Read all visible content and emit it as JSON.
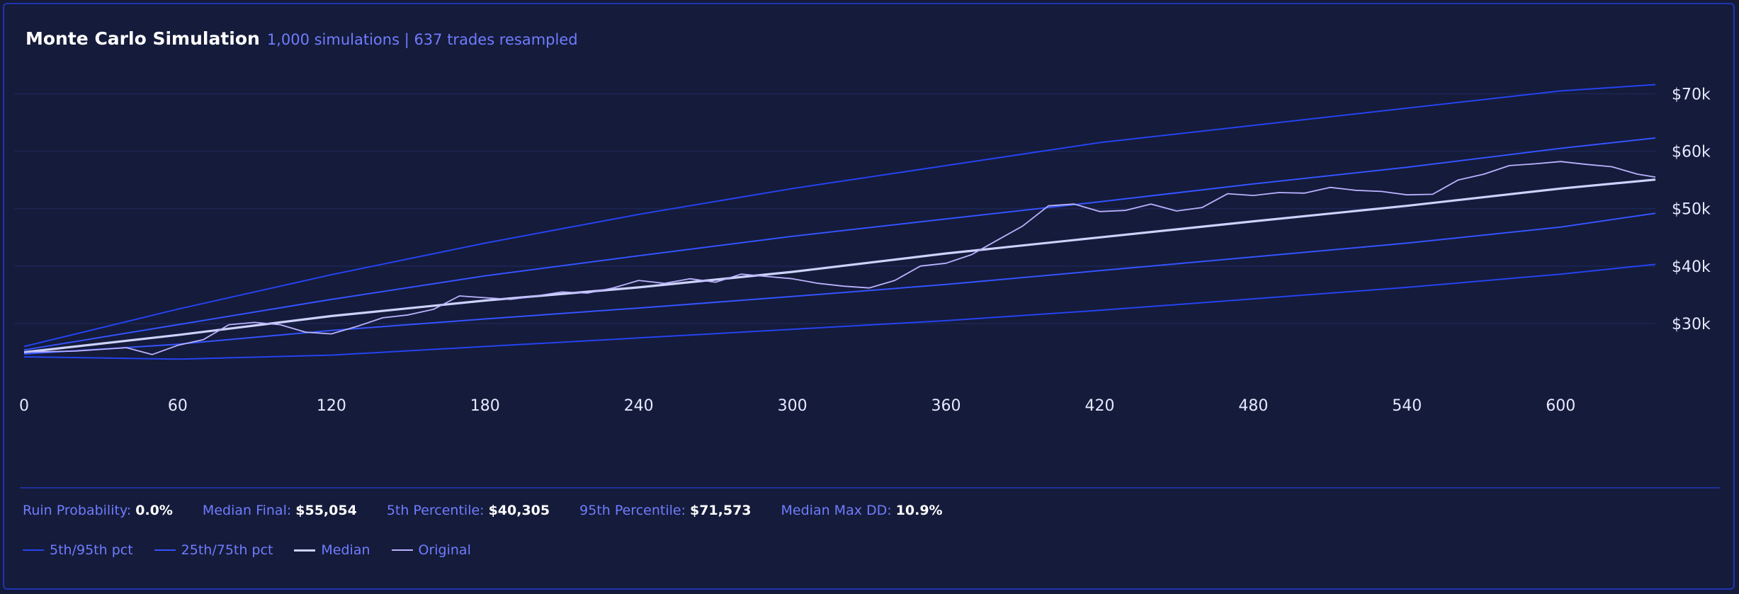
{
  "header": {
    "title": "Monte Carlo Simulation",
    "subtitle": "1,000 simulations | 637 trades resampled"
  },
  "colors": {
    "background": "#151b3a",
    "band_outer": "#2443f0",
    "band_inner": "#3353ff",
    "median": "#cdd2ff",
    "original": "#b9b2ff",
    "accent_text": "#6f7dff",
    "grid": "#1b2656"
  },
  "chart_data": {
    "type": "line",
    "title": "Monte Carlo Simulation",
    "xlabel": "",
    "ylabel": "",
    "xlim": [
      0,
      637
    ],
    "ylim": [
      21000,
      74000
    ],
    "x_ticks": [
      0,
      60,
      120,
      180,
      240,
      300,
      360,
      420,
      480,
      540,
      600
    ],
    "x_tick_labels": [
      "0",
      "60",
      "120",
      "180",
      "240",
      "300",
      "360",
      "420",
      "480",
      "540",
      "600"
    ],
    "y_ticks": [
      30000,
      40000,
      50000,
      60000,
      70000
    ],
    "y_tick_labels": [
      "$30k",
      "$40k",
      "$50k",
      "$60k",
      "$70k"
    ],
    "grid": true,
    "legend_position": "bottom-left",
    "series": [
      {
        "name": "95th pct",
        "group": "5th/95th pct",
        "x": [
          0,
          60,
          120,
          180,
          240,
          300,
          360,
          420,
          480,
          540,
          600,
          637
        ],
        "values": [
          26000,
          32500,
          38500,
          44000,
          49000,
          53500,
          57500,
          61500,
          64500,
          67500,
          70500,
          71600
        ]
      },
      {
        "name": "75th pct",
        "group": "25th/75th pct",
        "x": [
          0,
          60,
          120,
          180,
          240,
          300,
          360,
          420,
          480,
          540,
          600,
          637
        ],
        "values": [
          25400,
          29800,
          34200,
          38300,
          41800,
          45200,
          48200,
          51200,
          54300,
          57200,
          60500,
          62300
        ]
      },
      {
        "name": "Median",
        "group": "Median",
        "x": [
          0,
          60,
          120,
          180,
          240,
          300,
          360,
          420,
          480,
          540,
          600,
          637
        ],
        "values": [
          25000,
          28000,
          31300,
          34000,
          36300,
          39000,
          42200,
          45000,
          47800,
          50500,
          53500,
          55054
        ]
      },
      {
        "name": "25th pct",
        "group": "25th/75th pct",
        "x": [
          0,
          60,
          120,
          180,
          240,
          300,
          360,
          420,
          480,
          540,
          600,
          637
        ],
        "values": [
          24700,
          26400,
          28800,
          30800,
          32700,
          34700,
          36800,
          39200,
          41600,
          44000,
          46800,
          49200
        ]
      },
      {
        "name": "5th pct",
        "group": "5th/95th pct",
        "x": [
          0,
          60,
          120,
          180,
          240,
          300,
          360,
          420,
          480,
          540,
          600,
          637
        ],
        "values": [
          24200,
          23800,
          24500,
          26000,
          27500,
          29000,
          30500,
          32300,
          34300,
          36300,
          38600,
          40305
        ]
      },
      {
        "name": "Original",
        "group": "Original",
        "x": [
          0,
          20,
          40,
          50,
          60,
          70,
          80,
          90,
          100,
          110,
          120,
          130,
          140,
          150,
          160,
          170,
          180,
          190,
          200,
          210,
          220,
          230,
          240,
          250,
          260,
          270,
          280,
          290,
          300,
          310,
          320,
          330,
          340,
          350,
          360,
          370,
          380,
          390,
          400,
          410,
          420,
          430,
          440,
          450,
          460,
          470,
          480,
          490,
          500,
          510,
          520,
          530,
          540,
          550,
          560,
          570,
          580,
          590,
          600,
          610,
          620,
          630,
          637
        ],
        "values": [
          25000,
          25200,
          25800,
          24600,
          26200,
          27200,
          29800,
          30200,
          29800,
          28500,
          28200,
          29500,
          31000,
          31500,
          32500,
          34800,
          34500,
          34200,
          34800,
          35500,
          35300,
          36200,
          37500,
          37000,
          37800,
          37200,
          38600,
          38200,
          37800,
          37000,
          36500,
          36200,
          37500,
          40000,
          40500,
          42000,
          44500,
          47000,
          50500,
          50800,
          49500,
          49700,
          50800,
          49600,
          50200,
          52600,
          52300,
          52800,
          52700,
          53700,
          53200,
          53000,
          52400,
          52500,
          55000,
          56000,
          57500,
          57800,
          58200,
          57700,
          57300,
          56000,
          55500
        ]
      }
    ]
  },
  "stats": [
    {
      "label": "Ruin Probability:",
      "value": "0.0%"
    },
    {
      "label": "Median Final:",
      "value": "$55,054"
    },
    {
      "label": "5th Percentile:",
      "value": "$40,305"
    },
    {
      "label": "95th Percentile:",
      "value": "$71,573"
    },
    {
      "label": "Median Max DD:",
      "value": "10.9%"
    }
  ],
  "legend": [
    {
      "label": "5th/95th pct",
      "color": "#2443f0",
      "thickness": "thin"
    },
    {
      "label": "25th/75th pct",
      "color": "#3353ff",
      "thickness": "thin"
    },
    {
      "label": "Median",
      "color": "#cdd2ff",
      "thickness": "thick"
    },
    {
      "label": "Original",
      "color": "#b9b2ff",
      "thickness": "thin"
    }
  ]
}
